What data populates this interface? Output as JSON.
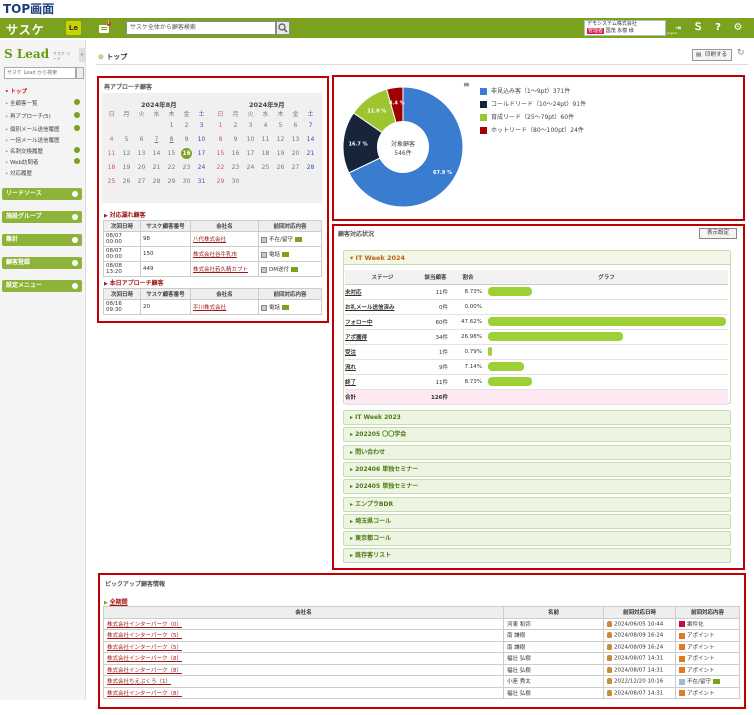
{
  "page_label": "TOP画面",
  "header": {
    "logo": "サスケ",
    "le": "Le",
    "notif_count": "1",
    "search_placeholder": "サスケ全体から顧客検索",
    "company": "デモシステム株式会社",
    "user": "国茂 永樹 様",
    "user_tag": "管理者",
    "logout": "Logout"
  },
  "sidebar": {
    "brand": "Lead",
    "brand_sub": "サスケ リード",
    "search_placeholder": "サスケ Lead から検索",
    "items": [
      {
        "label": "トップ",
        "active": true
      },
      {
        "label": "全顧客一覧"
      },
      {
        "label": "再アプローチ(5)"
      },
      {
        "label": "個別メール送信履歴"
      },
      {
        "label": "一括メール送信履歴"
      },
      {
        "label": "名刺交換履歴"
      },
      {
        "label": "Web訪問者"
      },
      {
        "label": "対応履歴"
      }
    ],
    "sections": [
      "リードソース",
      "施設グループ",
      "集計",
      "顧客登録",
      "設定メニュー"
    ]
  },
  "main": {
    "title": "トップ",
    "print_label": "印刷する"
  },
  "reapproach": {
    "heading": "再アプローチ顧客",
    "weekdays": [
      "日",
      "月",
      "火",
      "水",
      "木",
      "金",
      "土"
    ],
    "months": [
      {
        "title": "2024年8月",
        "weeks": [
          [
            "",
            "",
            "",
            "",
            "1",
            "2",
            "3"
          ],
          [
            "4",
            "5",
            "6",
            "7",
            "8",
            "9",
            "10"
          ],
          [
            "11",
            "12",
            "13",
            "14",
            "15",
            "16",
            "17"
          ],
          [
            "18",
            "19",
            "20",
            "21",
            "22",
            "23",
            "24"
          ],
          [
            "25",
            "26",
            "27",
            "28",
            "29",
            "30",
            "31"
          ]
        ]
      },
      {
        "title": "2024年9月",
        "weeks": [
          [
            "1",
            "2",
            "3",
            "4",
            "5",
            "6",
            "7"
          ],
          [
            "8",
            "9",
            "10",
            "11",
            "12",
            "13",
            "14"
          ],
          [
            "15",
            "16",
            "17",
            "18",
            "19",
            "20",
            "21"
          ],
          [
            "22",
            "23",
            "24",
            "25",
            "26",
            "27",
            "28"
          ],
          [
            "29",
            "30",
            "",
            "",
            "",
            "",
            ""
          ]
        ]
      }
    ],
    "missed": {
      "heading": "対応漏れ顧客",
      "columns": [
        "次回日時",
        "サスケ顧客番号",
        "会社名",
        "前回対応内容"
      ],
      "rows": [
        {
          "date": "08/07 00:00",
          "no": "98",
          "company": "八代株式会社",
          "action": "不在/留守"
        },
        {
          "date": "08/07 00:00",
          "no": "150",
          "company": "株式会社谷牛乳市",
          "action": "電話"
        },
        {
          "date": "08/08 13:20",
          "no": "449",
          "company": "株式会社若久精カブト",
          "action": "DM送付"
        }
      ]
    },
    "today": {
      "heading": "本日アプローチ顧客",
      "columns": [
        "次回日時",
        "サスケ顧客番号",
        "会社名",
        "前回対応内容"
      ],
      "rows": [
        {
          "date": "08/16 09:30",
          "no": "20",
          "company": "平川株式会社",
          "action": "電話"
        }
      ]
    }
  },
  "chart_data": {
    "type": "pie",
    "center_label": "対象顧客",
    "center_value": "546件",
    "slices": [
      {
        "label": "非見込み客（1〜9pt）371件",
        "value": 67.9,
        "pct_label": "67.9 %",
        "color": "#3a7dd0"
      },
      {
        "label": "コールドリード（10〜24pt）91件",
        "value": 16.7,
        "pct_label": "16.7 %",
        "color": "#17243a"
      },
      {
        "label": "育成リード（25〜79pt）60件",
        "value": 11.0,
        "pct_label": "11.0 %",
        "color": "#9cc52f"
      },
      {
        "label": "ホットリード（80〜100pt）24件",
        "value": 4.4,
        "pct_label": "4.4 %",
        "color": "#a00000"
      }
    ],
    "legend_position": "right"
  },
  "status": {
    "heading": "顧客対応状況",
    "settings_label": "表示設定",
    "open_group": "IT Week 2024",
    "columns": [
      "ステージ",
      "該当顧客",
      "割合",
      "グラフ"
    ],
    "stages": [
      {
        "name": "未対応",
        "count": "11件",
        "pct": "8.73%",
        "ratio": 0.0873
      },
      {
        "name": "お礼メール送信済み",
        "count": "0件",
        "pct": "0.00%",
        "ratio": 0
      },
      {
        "name": "フォロー中",
        "count": "60件",
        "pct": "47.62%",
        "ratio": 0.4762
      },
      {
        "name": "アポ獲得",
        "count": "34件",
        "pct": "26.98%",
        "ratio": 0.2698
      },
      {
        "name": "受注",
        "count": "1件",
        "pct": "0.79%",
        "ratio": 0.0079
      },
      {
        "name": "流れ",
        "count": "9件",
        "pct": "7.14%",
        "ratio": 0.0714
      },
      {
        "name": "終了",
        "count": "11件",
        "pct": "8.73%",
        "ratio": 0.0873
      }
    ],
    "total_label": "合計",
    "total_count": "126件",
    "collapsed_groups": [
      "IT Week 2023",
      "202205 〇〇学会",
      "問い合わせ",
      "202406 単独セミナー",
      "202405 単独セミナー",
      "エンプラBDR",
      "埼玉県コール",
      "東京都コール",
      "既存客リスト"
    ]
  },
  "pickup": {
    "heading": "ピックアップ顧客情報",
    "group": "全期間",
    "columns": [
      "会社名",
      "名前",
      "前回対応日時",
      "前回対応内容"
    ],
    "rows": [
      {
        "company": "株式会社インターパーク（0）",
        "name": "河東 和弥",
        "date": "2024/06/05 10:44",
        "action": "案件化",
        "color": "#c0103a"
      },
      {
        "company": "株式会社インターパーク（5）",
        "name": "南 謙樹",
        "date": "2024/08/09 16:24",
        "action": "アポイント",
        "color": "#e07b20"
      },
      {
        "company": "株式会社インターパーク（5）",
        "name": "南 謙樹",
        "date": "2024/08/09 16:24",
        "action": "アポイント",
        "color": "#e07b20"
      },
      {
        "company": "株式会社インターパーク（8）",
        "name": "福壮 弘樹",
        "date": "2024/08/07 14:31",
        "action": "アポイント",
        "color": "#e07b20"
      },
      {
        "company": "株式会社インターパーク（8）",
        "name": "福壮 弘樹",
        "date": "2024/08/07 14:31",
        "action": "アポイント",
        "color": "#e07b20"
      },
      {
        "company": "株式会社ちえぶくろ（1）",
        "name": "小座 秀太",
        "date": "2022/12/20 10:16",
        "action": "不在/留守",
        "color": "#9bbcd8"
      },
      {
        "company": "株式会社インターパーク（8）",
        "name": "福壮 弘樹",
        "date": "2024/08/07 14:31",
        "action": "アポイント",
        "color": "#e07b20"
      }
    ]
  }
}
